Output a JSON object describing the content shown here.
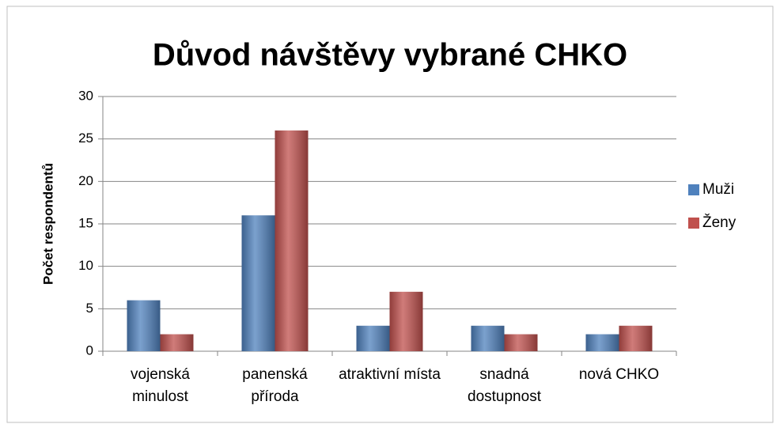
{
  "chart_data": {
    "type": "bar",
    "title": "Důvod návštěvy vybrané CHKO",
    "y_label": "Počet respondentů",
    "categories": [
      "vojenská minulost",
      "panenská příroda",
      "atraktivní místa",
      "snadná dostupnost",
      "nová CHKO"
    ],
    "series": [
      {
        "name": "Muži",
        "color": "#4f81bd",
        "values": [
          6,
          16,
          3,
          3,
          2
        ]
      },
      {
        "name": "Ženy",
        "color": "#c0504d",
        "values": [
          2,
          26,
          7,
          2,
          3
        ]
      }
    ],
    "ylim": [
      0,
      30
    ],
    "yticks": [
      0,
      5,
      10,
      15,
      20,
      25,
      30
    ],
    "grid": true,
    "legend": "right"
  }
}
